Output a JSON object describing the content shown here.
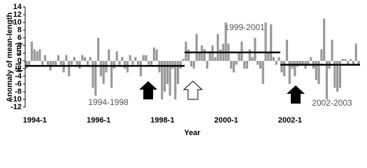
{
  "chart_data": {
    "type": "bar",
    "y_label": [
      "Anomaly of mean-length",
      "(FL. cm)"
    ],
    "x_label": "Year",
    "categories": [
      "1994-1",
      null,
      null,
      null,
      null,
      null,
      null,
      null,
      null,
      null,
      null,
      null,
      null,
      null,
      null,
      null,
      null,
      null,
      null,
      null,
      null,
      null,
      null,
      null,
      "1996-1",
      null,
      null,
      null,
      null,
      null,
      null,
      null,
      null,
      null,
      null,
      null,
      null,
      null,
      null,
      null,
      null,
      null,
      null,
      null,
      null,
      null,
      null,
      null,
      "1998-1",
      null,
      null,
      null,
      null,
      null,
      null,
      null,
      null,
      null,
      null,
      null,
      null,
      null,
      null,
      null,
      null,
      null,
      null,
      null,
      null,
      null,
      null,
      null,
      "2000-1",
      null,
      null,
      null,
      null,
      null,
      null,
      null,
      null,
      null,
      null,
      null,
      null,
      null,
      null,
      null,
      null,
      null,
      null,
      null,
      null,
      null,
      null,
      null,
      "2002-1",
      null,
      null,
      null,
      null,
      null,
      null,
      null,
      null,
      null,
      null,
      null,
      null,
      null,
      null,
      null,
      null,
      null,
      null,
      null,
      null,
      null,
      null,
      null,
      null,
      null,
      null,
      null,
      null,
      null
    ],
    "values": [
      -2,
      -1,
      5,
      3,
      2.5,
      3,
      -1,
      1.5,
      -1,
      -2.5,
      -1,
      -1.5,
      1.5,
      -1,
      -3,
      1.5,
      -4,
      -1,
      1,
      -1,
      -2,
      1.5,
      1,
      -1,
      1,
      -7,
      -9,
      6,
      -4,
      -6,
      -3,
      3,
      -7,
      -2,
      2.5,
      -1,
      1,
      -2,
      -3,
      1.5,
      -1,
      1,
      -1,
      -4,
      1.5,
      1.5,
      -1,
      -1,
      3.5,
      3,
      -3,
      -10,
      -8,
      -6,
      -9,
      -2,
      -10,
      -6,
      -2,
      0.5,
      5,
      3,
      -1.5,
      -2,
      7,
      2,
      4,
      3,
      -2,
      2.5,
      4,
      1,
      7,
      3,
      4.5,
      10,
      4.5,
      -2,
      -3,
      -1,
      2,
      5,
      -2,
      -2,
      3,
      1,
      6,
      -1,
      -2,
      -6,
      10,
      2,
      9.5,
      1,
      -1,
      1,
      -3,
      -4,
      5.5,
      -6,
      -2,
      -4,
      -1.5,
      -1,
      -1,
      -2,
      -1,
      1,
      -2,
      -5,
      -6,
      3,
      11,
      -10,
      -2,
      5.5,
      -7,
      -8,
      -7,
      0.5,
      0.5,
      -1,
      0.5,
      -1,
      4.5,
      -1
    ],
    "color": "#999999",
    "means": [
      {
        "label": "1994-1998",
        "value": -1.3
      },
      {
        "label": "1999-2001",
        "value": 2.2
      },
      {
        "label": "2002-2003",
        "value": -1
      }
    ],
    "mean_color": "#000000",
    "ylim": [
      -12,
      14
    ],
    "yticks": [
      -12,
      -10,
      -8,
      -6,
      -4,
      -2,
      0,
      2,
      4,
      6,
      8,
      10,
      12,
      14
    ]
  }
}
